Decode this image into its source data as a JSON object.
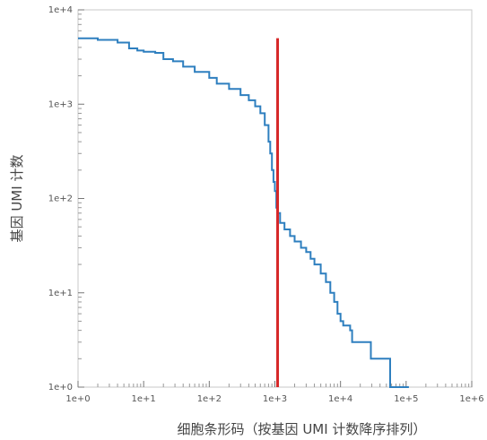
{
  "chart_data": {
    "type": "line",
    "title": "",
    "xlabel": "细胞条形码（按基因 UMI 计数降序排列）",
    "ylabel": "基因 UMI 计数",
    "x_scale": "log",
    "y_scale": "log",
    "xlim": [
      1,
      1000000
    ],
    "ylim": [
      1,
      10000
    ],
    "x_tick_labels": [
      "1e+0",
      "1e+1",
      "1e+2",
      "1e+3",
      "1e+4",
      "1e+5",
      "1e+6"
    ],
    "y_tick_labels": [
      "1e+0",
      "1e+1",
      "1e+2",
      "1e+3",
      "1e+4"
    ],
    "grid": false,
    "legend": "none",
    "series": [
      {
        "color": "#2e7fbf",
        "points": [
          [
            1,
            5000
          ],
          [
            2,
            4800
          ],
          [
            4,
            4500
          ],
          [
            6,
            3900
          ],
          [
            8,
            3700
          ],
          [
            10,
            3600
          ],
          [
            15,
            3500
          ],
          [
            20,
            3000
          ],
          [
            28,
            2850
          ],
          [
            40,
            2500
          ],
          [
            60,
            2200
          ],
          [
            100,
            1900
          ],
          [
            130,
            1650
          ],
          [
            200,
            1450
          ],
          [
            300,
            1250
          ],
          [
            400,
            1100
          ],
          [
            500,
            950
          ],
          [
            600,
            800
          ],
          [
            700,
            600
          ],
          [
            800,
            400
          ],
          [
            850,
            300
          ],
          [
            900,
            200
          ],
          [
            950,
            150
          ],
          [
            1000,
            120
          ],
          [
            1050,
            80
          ],
          [
            1100,
            70
          ],
          [
            1200,
            55
          ],
          [
            1400,
            47
          ],
          [
            1700,
            40
          ],
          [
            2000,
            35
          ],
          [
            2500,
            30
          ],
          [
            3000,
            27
          ],
          [
            3500,
            23
          ],
          [
            4000,
            20
          ],
          [
            5000,
            16
          ],
          [
            6000,
            13
          ],
          [
            7000,
            10
          ],
          [
            8000,
            8
          ],
          [
            9000,
            6
          ],
          [
            10000,
            5
          ],
          [
            11000,
            4.5
          ],
          [
            14000,
            4
          ],
          [
            15000,
            3
          ],
          [
            28000,
            3
          ],
          [
            29000,
            2
          ],
          [
            55000,
            2
          ],
          [
            57000,
            1
          ],
          [
            110000,
            1
          ]
        ]
      }
    ],
    "threshold_line": {
      "x": 1100,
      "y_from": 1,
      "y_to": 5000,
      "color": "#d62728"
    }
  }
}
